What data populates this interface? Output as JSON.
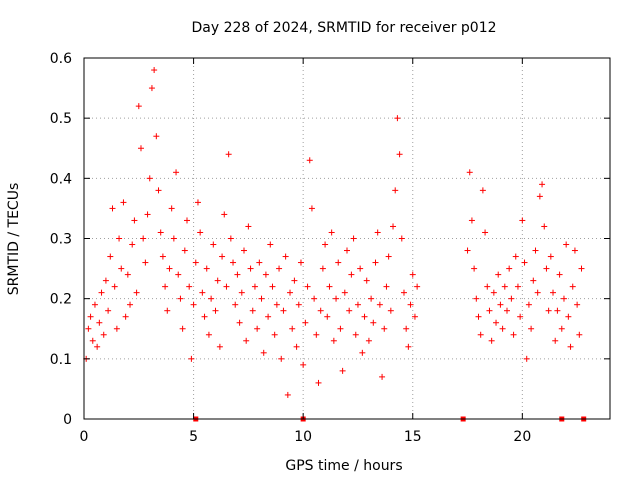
{
  "chart_data": {
    "type": "scatter",
    "title": "Day 228 of 2024, SRMTID for receiver p012",
    "xlabel": "GPS time / hours",
    "ylabel": "SRMTID / TECUs",
    "xlim": [
      0,
      24
    ],
    "ylim": [
      0,
      0.6
    ],
    "xticks": [
      0,
      5,
      10,
      15,
      20
    ],
    "yticks": [
      0,
      0.1,
      0.2,
      0.3,
      0.4,
      0.5,
      0.6
    ],
    "xtick_labels": [
      "0",
      "5",
      "10",
      "15",
      "20"
    ],
    "ytick_labels": [
      "0",
      "0.1",
      "0.2",
      "0.3",
      "0.4",
      "0.5",
      "0.6"
    ],
    "grid": true,
    "legend": "none",
    "marker": "plus",
    "color": "#ff0000",
    "series": [
      {
        "name": "SRMTID",
        "coverage_hours": [
          [
            0,
            15.3
          ],
          [
            17.5,
            22.8
          ]
        ],
        "points": [
          [
            0.1,
            0.1
          ],
          [
            0.2,
            0.15
          ],
          [
            0.3,
            0.17
          ],
          [
            0.4,
            0.13
          ],
          [
            0.5,
            0.19
          ],
          [
            0.6,
            0.12
          ],
          [
            0.7,
            0.16
          ],
          [
            0.8,
            0.21
          ],
          [
            0.9,
            0.14
          ],
          [
            1.0,
            0.23
          ],
          [
            1.1,
            0.18
          ],
          [
            1.2,
            0.27
          ],
          [
            1.3,
            0.35
          ],
          [
            1.4,
            0.22
          ],
          [
            1.5,
            0.15
          ],
          [
            1.6,
            0.3
          ],
          [
            1.7,
            0.25
          ],
          [
            1.8,
            0.36
          ],
          [
            1.9,
            0.17
          ],
          [
            2.0,
            0.24
          ],
          [
            2.1,
            0.19
          ],
          [
            2.2,
            0.29
          ],
          [
            2.3,
            0.33
          ],
          [
            2.4,
            0.21
          ],
          [
            2.5,
            0.52
          ],
          [
            2.6,
            0.45
          ],
          [
            2.7,
            0.3
          ],
          [
            2.8,
            0.26
          ],
          [
            2.9,
            0.34
          ],
          [
            3.0,
            0.4
          ],
          [
            3.1,
            0.55
          ],
          [
            3.2,
            0.58
          ],
          [
            3.3,
            0.47
          ],
          [
            3.4,
            0.38
          ],
          [
            3.5,
            0.31
          ],
          [
            3.6,
            0.27
          ],
          [
            3.7,
            0.22
          ],
          [
            3.8,
            0.18
          ],
          [
            3.9,
            0.25
          ],
          [
            4.0,
            0.35
          ],
          [
            4.1,
            0.3
          ],
          [
            4.2,
            0.41
          ],
          [
            4.3,
            0.24
          ],
          [
            4.4,
            0.2
          ],
          [
            4.5,
            0.15
          ],
          [
            4.6,
            0.28
          ],
          [
            4.7,
            0.33
          ],
          [
            4.8,
            0.22
          ],
          [
            4.9,
            0.1
          ],
          [
            5.0,
            0.19
          ],
          [
            5.1,
            0.26
          ],
          [
            5.2,
            0.36
          ],
          [
            5.3,
            0.31
          ],
          [
            5.4,
            0.21
          ],
          [
            5.5,
            0.17
          ],
          [
            5.6,
            0.25
          ],
          [
            5.7,
            0.14
          ],
          [
            5.8,
            0.2
          ],
          [
            5.9,
            0.29
          ],
          [
            6.0,
            0.18
          ],
          [
            6.1,
            0.23
          ],
          [
            6.2,
            0.12
          ],
          [
            6.3,
            0.27
          ],
          [
            6.4,
            0.34
          ],
          [
            6.5,
            0.22
          ],
          [
            6.6,
            0.44
          ],
          [
            6.7,
            0.3
          ],
          [
            6.8,
            0.26
          ],
          [
            6.9,
            0.19
          ],
          [
            7.0,
            0.24
          ],
          [
            7.1,
            0.16
          ],
          [
            7.2,
            0.21
          ],
          [
            7.3,
            0.28
          ],
          [
            7.4,
            0.13
          ],
          [
            7.5,
            0.32
          ],
          [
            7.6,
            0.25
          ],
          [
            7.7,
            0.18
          ],
          [
            7.8,
            0.22
          ],
          [
            7.9,
            0.15
          ],
          [
            8.0,
            0.26
          ],
          [
            8.1,
            0.2
          ],
          [
            8.2,
            0.11
          ],
          [
            8.3,
            0.24
          ],
          [
            8.4,
            0.17
          ],
          [
            8.5,
            0.29
          ],
          [
            8.6,
            0.22
          ],
          [
            8.7,
            0.14
          ],
          [
            8.8,
            0.19
          ],
          [
            8.9,
            0.25
          ],
          [
            9.0,
            0.1
          ],
          [
            9.1,
            0.18
          ],
          [
            9.2,
            0.27
          ],
          [
            9.3,
            0.04
          ],
          [
            9.4,
            0.21
          ],
          [
            9.5,
            0.15
          ],
          [
            9.6,
            0.23
          ],
          [
            9.7,
            0.12
          ],
          [
            9.8,
            0.19
          ],
          [
            9.9,
            0.26
          ],
          [
            10.0,
            0.09
          ],
          [
            10.1,
            0.16
          ],
          [
            10.2,
            0.22
          ],
          [
            10.3,
            0.43
          ],
          [
            10.4,
            0.35
          ],
          [
            10.5,
            0.2
          ],
          [
            10.6,
            0.14
          ],
          [
            10.7,
            0.06
          ],
          [
            10.8,
            0.18
          ],
          [
            10.9,
            0.25
          ],
          [
            11.0,
            0.29
          ],
          [
            11.1,
            0.17
          ],
          [
            11.2,
            0.22
          ],
          [
            11.3,
            0.31
          ],
          [
            11.4,
            0.13
          ],
          [
            11.5,
            0.2
          ],
          [
            11.6,
            0.26
          ],
          [
            11.7,
            0.15
          ],
          [
            11.8,
            0.08
          ],
          [
            11.9,
            0.21
          ],
          [
            12.0,
            0.28
          ],
          [
            12.1,
            0.18
          ],
          [
            12.2,
            0.24
          ],
          [
            12.3,
            0.3
          ],
          [
            12.4,
            0.14
          ],
          [
            12.5,
            0.19
          ],
          [
            12.6,
            0.25
          ],
          [
            12.7,
            0.11
          ],
          [
            12.8,
            0.17
          ],
          [
            12.9,
            0.23
          ],
          [
            13.0,
            0.13
          ],
          [
            13.1,
            0.2
          ],
          [
            13.2,
            0.16
          ],
          [
            13.3,
            0.26
          ],
          [
            13.4,
            0.31
          ],
          [
            13.5,
            0.19
          ],
          [
            13.6,
            0.07
          ],
          [
            13.7,
            0.15
          ],
          [
            13.8,
            0.22
          ],
          [
            13.9,
            0.27
          ],
          [
            14.0,
            0.18
          ],
          [
            14.1,
            0.32
          ],
          [
            14.2,
            0.38
          ],
          [
            14.3,
            0.5
          ],
          [
            14.4,
            0.44
          ],
          [
            14.5,
            0.3
          ],
          [
            14.6,
            0.21
          ],
          [
            14.7,
            0.15
          ],
          [
            14.8,
            0.12
          ],
          [
            14.9,
            0.19
          ],
          [
            15.0,
            0.24
          ],
          [
            15.1,
            0.17
          ],
          [
            15.2,
            0.22
          ],
          [
            17.5,
            0.28
          ],
          [
            17.6,
            0.41
          ],
          [
            17.7,
            0.33
          ],
          [
            17.8,
            0.25
          ],
          [
            17.9,
            0.2
          ],
          [
            18.0,
            0.17
          ],
          [
            18.1,
            0.14
          ],
          [
            18.2,
            0.38
          ],
          [
            18.3,
            0.31
          ],
          [
            18.4,
            0.22
          ],
          [
            18.5,
            0.18
          ],
          [
            18.6,
            0.13
          ],
          [
            18.7,
            0.21
          ],
          [
            18.8,
            0.16
          ],
          [
            18.9,
            0.24
          ],
          [
            19.0,
            0.19
          ],
          [
            19.1,
            0.15
          ],
          [
            19.2,
            0.22
          ],
          [
            19.3,
            0.18
          ],
          [
            19.4,
            0.25
          ],
          [
            19.5,
            0.2
          ],
          [
            19.6,
            0.14
          ],
          [
            19.7,
            0.27
          ],
          [
            19.8,
            0.22
          ],
          [
            19.9,
            0.17
          ],
          [
            20.0,
            0.33
          ],
          [
            20.1,
            0.26
          ],
          [
            20.2,
            0.1
          ],
          [
            20.3,
            0.19
          ],
          [
            20.4,
            0.15
          ],
          [
            20.5,
            0.23
          ],
          [
            20.6,
            0.28
          ],
          [
            20.7,
            0.21
          ],
          [
            20.8,
            0.37
          ],
          [
            20.9,
            0.39
          ],
          [
            21.0,
            0.32
          ],
          [
            21.1,
            0.25
          ],
          [
            21.2,
            0.18
          ],
          [
            21.3,
            0.27
          ],
          [
            21.4,
            0.21
          ],
          [
            21.5,
            0.13
          ],
          [
            21.6,
            0.18
          ],
          [
            21.7,
            0.24
          ],
          [
            21.8,
            0.15
          ],
          [
            21.9,
            0.2
          ],
          [
            22.0,
            0.29
          ],
          [
            22.1,
            0.17
          ],
          [
            22.2,
            0.12
          ],
          [
            22.3,
            0.22
          ],
          [
            22.4,
            0.28
          ],
          [
            22.5,
            0.19
          ],
          [
            22.6,
            0.14
          ],
          [
            22.7,
            0.25
          ]
        ],
        "zero_markers": [
          5.1,
          10.0,
          17.3,
          21.8,
          22.8
        ]
      }
    ]
  }
}
